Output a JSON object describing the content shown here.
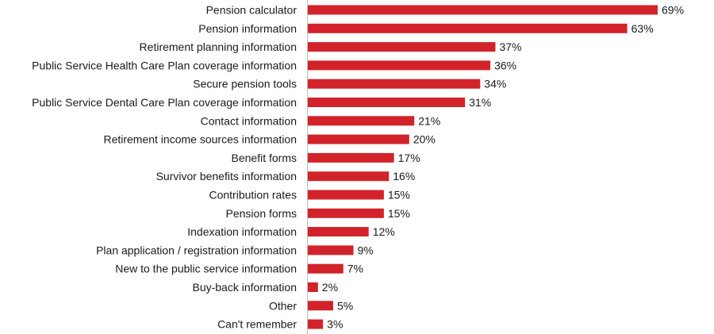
{
  "chart_data": {
    "type": "bar",
    "orientation": "horizontal",
    "categories": [
      "Pension calculator",
      "Pension information",
      "Retirement planning information",
      "Public Service Health Care Plan coverage information",
      "Secure pension tools",
      "Public Service Dental Care Plan coverage information",
      "Contact information",
      "Retirement income sources information",
      "Benefit forms",
      "Survivor benefits information",
      "Contribution rates",
      "Pension forms",
      "Indexation information",
      "Plan application / registration information",
      "New to the public service information",
      "Buy-back information",
      "Other",
      "Can't remember"
    ],
    "values": [
      69,
      63,
      37,
      36,
      34,
      31,
      21,
      20,
      17,
      16,
      15,
      15,
      12,
      9,
      7,
      2,
      5,
      3
    ],
    "value_suffix": "%",
    "title": "",
    "xlabel": "",
    "ylabel": "",
    "xlim": [
      0,
      69
    ],
    "grid": false,
    "legend": "none",
    "bar_color": "#d2232a"
  }
}
